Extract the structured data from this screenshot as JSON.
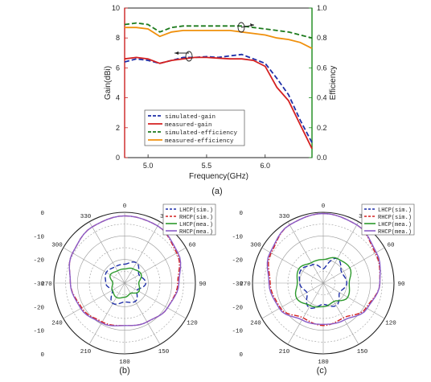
{
  "chart_data": [
    {
      "type": "line",
      "panel_label": "(a)",
      "xlabel": "Frequency(GHz)",
      "ylabel": "Gain(dBi)",
      "y2label": "Efficiency",
      "xlim": [
        4.8,
        6.4
      ],
      "ylim": [
        0,
        10
      ],
      "y2lim": [
        0,
        1.0
      ],
      "xticks": [
        "5.0",
        "5.5",
        "6.0"
      ],
      "xtick_values": [
        5.0,
        5.5,
        6.0
      ],
      "yticks": [
        "0",
        "2",
        "4",
        "6",
        "8",
        "10"
      ],
      "y2ticks": [
        "0.0",
        "0.2",
        "0.4",
        "0.6",
        "0.8",
        "1.0"
      ],
      "legend_position": "bottom-left",
      "colors": {
        "gain_axis": "#cc2222",
        "efficiency_axis": "#1a8a1a"
      },
      "series": [
        {
          "name": "simulated-gain",
          "axis": "left",
          "color": "#1f2fa8",
          "dash": "dash",
          "x": [
            4.8,
            4.9,
            5.0,
            5.1,
            5.2,
            5.3,
            5.4,
            5.5,
            5.6,
            5.7,
            5.8,
            5.9,
            6.0,
            6.1,
            6.2,
            6.3,
            6.4
          ],
          "y": [
            6.4,
            6.6,
            6.5,
            6.3,
            6.5,
            6.7,
            6.7,
            6.75,
            6.7,
            6.8,
            6.9,
            6.6,
            6.3,
            5.3,
            4.2,
            2.5,
            1.0
          ]
        },
        {
          "name": "measured-gain",
          "axis": "left",
          "color": "#d42020",
          "dash": "solid",
          "x": [
            4.8,
            4.9,
            5.0,
            5.1,
            5.2,
            5.3,
            5.4,
            5.5,
            5.6,
            5.7,
            5.8,
            5.9,
            6.0,
            6.1,
            6.2,
            6.3,
            6.4
          ],
          "y": [
            6.6,
            6.7,
            6.6,
            6.3,
            6.5,
            6.6,
            6.7,
            6.7,
            6.65,
            6.6,
            6.6,
            6.5,
            6.1,
            4.7,
            3.8,
            2.2,
            0.6
          ]
        },
        {
          "name": "simulated-efficiency",
          "axis": "right",
          "color": "#1c7a1c",
          "dash": "dash",
          "x": [
            4.8,
            4.9,
            5.0,
            5.1,
            5.2,
            5.3,
            5.4,
            5.5,
            5.6,
            5.7,
            5.8,
            5.9,
            6.0,
            6.1,
            6.2,
            6.3,
            6.4
          ],
          "y": [
            0.89,
            0.9,
            0.89,
            0.84,
            0.87,
            0.88,
            0.88,
            0.88,
            0.88,
            0.88,
            0.88,
            0.87,
            0.86,
            0.85,
            0.84,
            0.82,
            0.8
          ]
        },
        {
          "name": "measured-efficiency",
          "axis": "right",
          "color": "#f0900c",
          "dash": "solid",
          "x": [
            4.8,
            4.9,
            5.0,
            5.1,
            5.2,
            5.3,
            5.4,
            5.5,
            5.6,
            5.7,
            5.8,
            5.9,
            6.0,
            6.1,
            6.2,
            6.3,
            6.4
          ],
          "y": [
            0.87,
            0.87,
            0.86,
            0.81,
            0.84,
            0.85,
            0.85,
            0.85,
            0.85,
            0.85,
            0.84,
            0.83,
            0.82,
            0.8,
            0.79,
            0.77,
            0.73
          ]
        }
      ]
    },
    {
      "type": "polar",
      "panel_label": "(b)",
      "rlim": [
        -30,
        0
      ],
      "rticks": [
        "0",
        "-10",
        "-20",
        "-30",
        "-20",
        "-10",
        "0"
      ],
      "angle_ticks": [
        "0",
        "30",
        "60",
        "90",
        "120",
        "150",
        "180",
        "210",
        "240",
        "270",
        "300",
        "330"
      ],
      "legend_position": "top-right",
      "series": [
        {
          "name": "LHCP(sim.)",
          "color": "#1f2fa8",
          "dash": "dash",
          "theta": [
            0,
            30,
            60,
            90,
            120,
            150,
            180,
            210,
            240,
            270,
            300,
            330,
            360
          ],
          "r": [
            -22,
            -20,
            -23,
            -21,
            -24,
            -21,
            -22,
            -20,
            -24,
            -22,
            -21,
            -22,
            -22
          ]
        },
        {
          "name": "RHCP(sim.)",
          "color": "#d42020",
          "dash": "dashdot",
          "theta": [
            0,
            30,
            60,
            90,
            120,
            150,
            180,
            210,
            240,
            270,
            300,
            330,
            360
          ],
          "r": [
            -1.5,
            -2,
            -4.5,
            -7.5,
            -9,
            -11,
            -12,
            -11,
            -9,
            -7,
            -4.5,
            -2.5,
            -1.5
          ]
        },
        {
          "name": "LHCP(mea.)",
          "color": "#2c9a2c",
          "dash": "solid",
          "theta": [
            0,
            30,
            60,
            90,
            120,
            150,
            180,
            210,
            240,
            270,
            300,
            330,
            360
          ],
          "r": [
            -24,
            -23,
            -22,
            -24,
            -23,
            -25,
            -24,
            -23,
            -24,
            -25,
            -23,
            -24,
            -24
          ]
        },
        {
          "name": "RHCP(mea.)",
          "color": "#8a5cc8",
          "dash": "solid",
          "theta": [
            0,
            30,
            60,
            90,
            120,
            150,
            180,
            210,
            240,
            270,
            300,
            330,
            360
          ],
          "r": [
            -1.5,
            -2,
            -4,
            -7,
            -9,
            -11,
            -12,
            -10.5,
            -8.5,
            -7,
            -4.5,
            -2.5,
            -1.5
          ]
        }
      ]
    },
    {
      "type": "polar",
      "panel_label": "(c)",
      "rlim": [
        -30,
        0
      ],
      "rticks": [
        "0",
        "-10",
        "-20",
        "-30",
        "-20",
        "-10",
        "0"
      ],
      "angle_ticks": [
        "0",
        "30",
        "60",
        "90",
        "120",
        "150",
        "180",
        "210",
        "240",
        "270",
        "300",
        "330"
      ],
      "legend_position": "top-right",
      "series": [
        {
          "name": "LHCP(sim.)",
          "color": "#1f2fa8",
          "dash": "dash",
          "theta": [
            0,
            30,
            60,
            90,
            120,
            150,
            180,
            210,
            240,
            270,
            300,
            330,
            360
          ],
          "r": [
            -24,
            -18,
            -21,
            -20,
            -22,
            -19,
            -21,
            -18,
            -22,
            -20,
            -19,
            -21,
            -24
          ]
        },
        {
          "name": "RHCP(sim.)",
          "color": "#d42020",
          "dash": "dashdot",
          "theta": [
            0,
            30,
            60,
            90,
            120,
            150,
            180,
            210,
            240,
            270,
            300,
            330,
            360
          ],
          "r": [
            -0.5,
            -1.5,
            -4.5,
            -6,
            -9,
            -13,
            -12,
            -13,
            -9,
            -7.5,
            -4.5,
            -1.5,
            -0.5
          ]
        },
        {
          "name": "LHCP(mea.)",
          "color": "#2c9a2c",
          "dash": "solid",
          "theta": [
            0,
            30,
            60,
            90,
            120,
            150,
            180,
            210,
            240,
            270,
            300,
            330,
            360
          ],
          "r": [
            -20,
            -18,
            -17,
            -19,
            -18,
            -21,
            -20,
            -19,
            -17,
            -19,
            -18,
            -20,
            -20
          ]
        },
        {
          "name": "RHCP(mea.)",
          "color": "#8a5cc8",
          "dash": "solid",
          "theta": [
            0,
            30,
            60,
            90,
            120,
            150,
            180,
            210,
            240,
            270,
            300,
            330,
            360
          ],
          "r": [
            -0.5,
            -1.5,
            -4,
            -6,
            -8.5,
            -12,
            -12.5,
            -12,
            -8.5,
            -7,
            -4,
            -1.5,
            -0.5
          ]
        }
      ]
    }
  ]
}
